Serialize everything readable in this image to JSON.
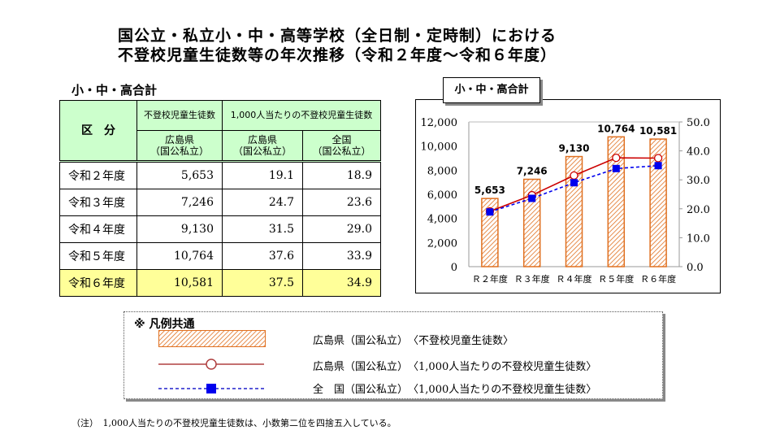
{
  "title": {
    "line1": "国公立・私立小・中・高等学校（全日制・定時制）における",
    "line2": "不登校児童生徒数等の年次推移（令和２年度～令和６年度）"
  },
  "table": {
    "caption": "小・中・高合計",
    "header": {
      "category": "区　分",
      "col_group1": "不登校児童生徒数",
      "col_group2": "1,000人当たりの不登校児童生徒数",
      "col1": "広島県\n（国公私立）",
      "col2": "広島県\n（国公私立）",
      "col3": "全国\n（国公私立）"
    },
    "rows": [
      {
        "label": "令和２年度",
        "count": "5,653",
        "hiroshima_rate": "19.1",
        "national_rate": "18.9"
      },
      {
        "label": "令和３年度",
        "count": "7,246",
        "hiroshima_rate": "24.7",
        "national_rate": "23.6"
      },
      {
        "label": "令和４年度",
        "count": "9,130",
        "hiroshima_rate": "31.5",
        "national_rate": "29.0"
      },
      {
        "label": "令和５年度",
        "count": "10,764",
        "hiroshima_rate": "37.6",
        "national_rate": "33.9"
      },
      {
        "label": "令和６年度",
        "count": "10,581",
        "hiroshima_rate": "37.5",
        "national_rate": "34.9"
      }
    ]
  },
  "chart_data": {
    "type": "bar",
    "title": "小・中・高合計",
    "categories": [
      "Ｒ２年度",
      "Ｒ３年度",
      "Ｒ４年度",
      "Ｒ５年度",
      "Ｒ６年度"
    ],
    "left_axis": {
      "ylim": [
        0,
        12000
      ],
      "ticks": [
        "0",
        "2,000",
        "4,000",
        "6,000",
        "8,000",
        "10,000",
        "12,000"
      ]
    },
    "right_axis": {
      "ylim": [
        0,
        50
      ],
      "ticks": [
        "0.0",
        "10.0",
        "20.0",
        "30.0",
        "40.0",
        "50.0"
      ]
    },
    "series": [
      {
        "name": "広島県（国公私立）〈不登校児童生徒数〉",
        "type": "bar",
        "axis": "left",
        "values": [
          5653,
          7246,
          9130,
          10764,
          10581
        ],
        "labels": [
          "5,653",
          "7,246",
          "9,130",
          "10,764",
          "10,581"
        ],
        "color": "#e07020"
      },
      {
        "name": "広島県（国公私立）〈1,000人当たりの不登校児童生徒数〉",
        "type": "line",
        "axis": "right",
        "values": [
          19.1,
          24.7,
          31.5,
          37.6,
          37.5
        ],
        "color": "#cc0000"
      },
      {
        "name": "全国（国公私立）〈1,000人当たりの不登校児童生徒数〉",
        "type": "line",
        "axis": "right",
        "values": [
          18.9,
          23.6,
          29.0,
          33.9,
          34.9
        ],
        "color": "#0000ee"
      }
    ]
  },
  "legend": {
    "title": "※ 凡例共通",
    "items": [
      {
        "label": "広島県（国公私立）",
        "desc": "〈不登校児童生徒数〉"
      },
      {
        "label": "広島県（国公私立）",
        "desc": "〈1,000人当たりの不登校児童生徒数〉"
      },
      {
        "label": "全　国（国公私立）",
        "desc": "〈1,000人当たりの不登校児童生徒数〉"
      }
    ]
  },
  "note": "（注）　1,000人当たりの不登校児童生徒数は、小数第二位を四捨五入している。"
}
